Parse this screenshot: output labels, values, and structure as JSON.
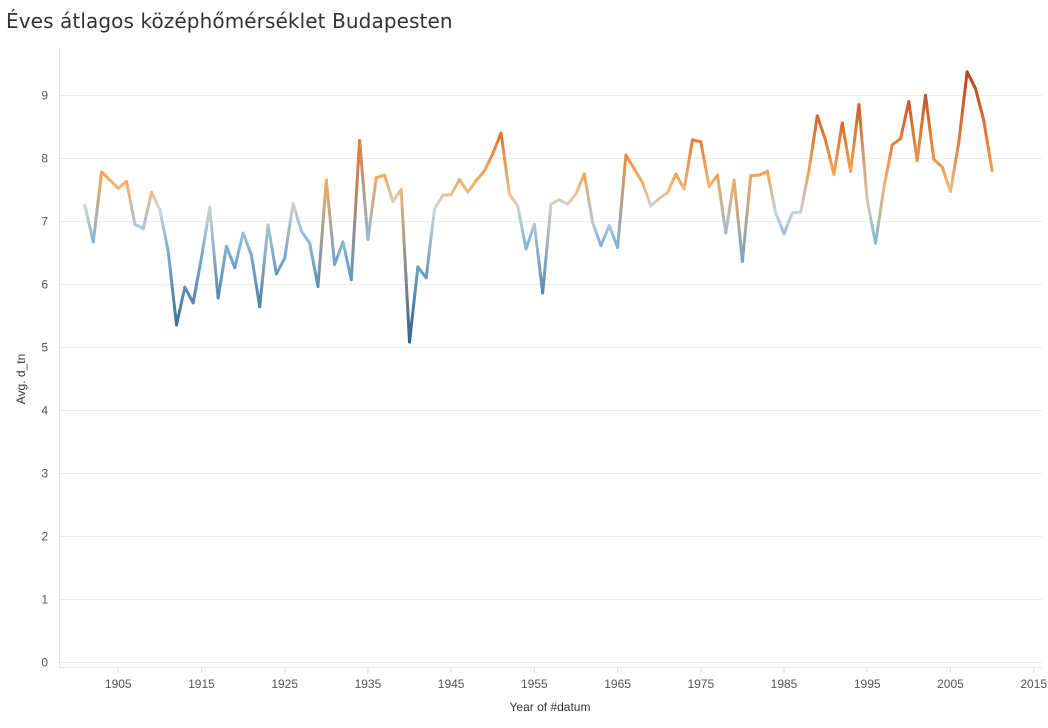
{
  "title": "Éves átlagos középhőmérséklet Budapesten",
  "chart_data": {
    "type": "line",
    "title": "Éves átlagos középhőmérséklet Budapesten",
    "xlabel": "Year of #datum",
    "ylabel": "Avg. d_tn",
    "xlim": [
      1898,
      2016
    ],
    "ylim": [
      -0.1,
      9.75
    ],
    "xticks": [
      1905,
      1915,
      1925,
      1935,
      1945,
      1955,
      1965,
      1975,
      1985,
      1995,
      2005,
      2015
    ],
    "yticks": [
      0,
      1,
      2,
      3,
      4,
      5,
      6,
      7,
      8,
      9
    ],
    "grid": true,
    "color_encoding": "diverging blue-to-orange by value",
    "colors": {
      "low": "#2d5f8a",
      "mid_low": "#7fb2d6",
      "mid": "#cfd6da",
      "mid_high": "#f5b062",
      "high": "#e07530",
      "max": "#b83f1c"
    },
    "series": [
      {
        "name": "Avg. d_tn",
        "x": [
          1901,
          1902,
          1903,
          1904,
          1905,
          1906,
          1907,
          1908,
          1909,
          1910,
          1911,
          1912,
          1913,
          1914,
          1915,
          1916,
          1917,
          1918,
          1919,
          1920,
          1921,
          1922,
          1923,
          1924,
          1925,
          1926,
          1927,
          1928,
          1929,
          1930,
          1931,
          1932,
          1933,
          1934,
          1935,
          1936,
          1937,
          1938,
          1939,
          1940,
          1941,
          1942,
          1943,
          1944,
          1945,
          1946,
          1947,
          1948,
          1949,
          1950,
          1951,
          1952,
          1953,
          1954,
          1955,
          1956,
          1957,
          1958,
          1959,
          1960,
          1961,
          1962,
          1963,
          1964,
          1965,
          1966,
          1967,
          1968,
          1969,
          1970,
          1971,
          1972,
          1973,
          1974,
          1975,
          1976,
          1977,
          1978,
          1979,
          1980,
          1981,
          1982,
          1983,
          1984,
          1985,
          1986,
          1987,
          1988,
          1989,
          1990,
          1991,
          1992,
          1993,
          1994,
          1995,
          1996,
          1997,
          1998,
          1999,
          2000,
          2001,
          2002,
          2003,
          2004,
          2005,
          2006,
          2007,
          2008,
          2009,
          2010
        ],
        "values": [
          7.25,
          6.67,
          7.78,
          7.65,
          7.52,
          7.63,
          6.95,
          6.88,
          7.46,
          7.18,
          6.52,
          5.35,
          5.95,
          5.7,
          6.42,
          7.22,
          5.78,
          6.6,
          6.26,
          6.81,
          6.46,
          5.64,
          6.94,
          6.16,
          6.41,
          7.28,
          6.84,
          6.65,
          5.96,
          7.65,
          6.31,
          6.67,
          6.07,
          8.28,
          6.71,
          7.69,
          7.73,
          7.31,
          7.5,
          5.08,
          6.27,
          6.1,
          7.19,
          7.41,
          7.42,
          7.66,
          7.46,
          7.64,
          7.8,
          8.07,
          8.4,
          7.43,
          7.24,
          6.56,
          6.95,
          5.86,
          7.27,
          7.34,
          7.27,
          7.43,
          7.75,
          6.98,
          6.61,
          6.93,
          6.58,
          8.05,
          7.83,
          7.61,
          7.24,
          7.36,
          7.45,
          7.75,
          7.51,
          8.29,
          8.26,
          7.55,
          7.73,
          6.81,
          7.65,
          6.36,
          7.72,
          7.73,
          7.79,
          7.13,
          6.8,
          7.13,
          7.14,
          7.81,
          8.67,
          8.28,
          7.74,
          8.56,
          7.79,
          8.85,
          7.33,
          6.65,
          7.53,
          8.21,
          8.31,
          8.9,
          7.96,
          9.0,
          7.98,
          7.86,
          7.47,
          8.25,
          9.37,
          9.11,
          8.6,
          7.8
        ]
      }
    ]
  }
}
